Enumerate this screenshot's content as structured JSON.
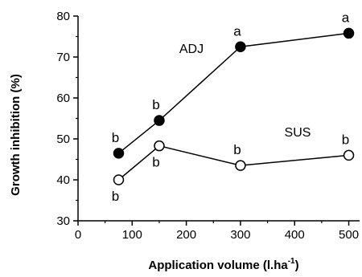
{
  "chart_data": {
    "type": "line",
    "xlabel": "Application volume (l.ha",
    "xlabel_sup": "-1",
    "xlabel_close": ")",
    "ylabel": "Growth inhibition (%)",
    "xlim": [
      0,
      520
    ],
    "ylim": [
      30,
      80
    ],
    "xticks": [
      0,
      100,
      200,
      300,
      400,
      500
    ],
    "yticks": [
      30,
      40,
      50,
      60,
      70,
      80
    ],
    "grid": false,
    "series": [
      {
        "name": "ADJ",
        "marker": "filled-circle",
        "color": "#000000",
        "points": [
          {
            "x": 75,
            "y": 46.5,
            "label": "b",
            "label_pos": "above"
          },
          {
            "x": 150,
            "y": 54.5,
            "label": "b",
            "label_pos": "above"
          },
          {
            "x": 300,
            "y": 72.5,
            "label": "a",
            "label_pos": "above"
          },
          {
            "x": 500,
            "y": 75.8,
            "label": "a",
            "label_pos": "above"
          }
        ]
      },
      {
        "name": "SUS",
        "marker": "open-circle",
        "color": "#000000",
        "points": [
          {
            "x": 75,
            "y": 40,
            "label": "b",
            "label_pos": "below"
          },
          {
            "x": 150,
            "y": 48.3,
            "label": "b",
            "label_pos": "below"
          },
          {
            "x": 300,
            "y": 43.5,
            "label": "b",
            "label_pos": "above"
          },
          {
            "x": 500,
            "y": 46,
            "label": "b",
            "label_pos": "above"
          }
        ]
      }
    ]
  }
}
